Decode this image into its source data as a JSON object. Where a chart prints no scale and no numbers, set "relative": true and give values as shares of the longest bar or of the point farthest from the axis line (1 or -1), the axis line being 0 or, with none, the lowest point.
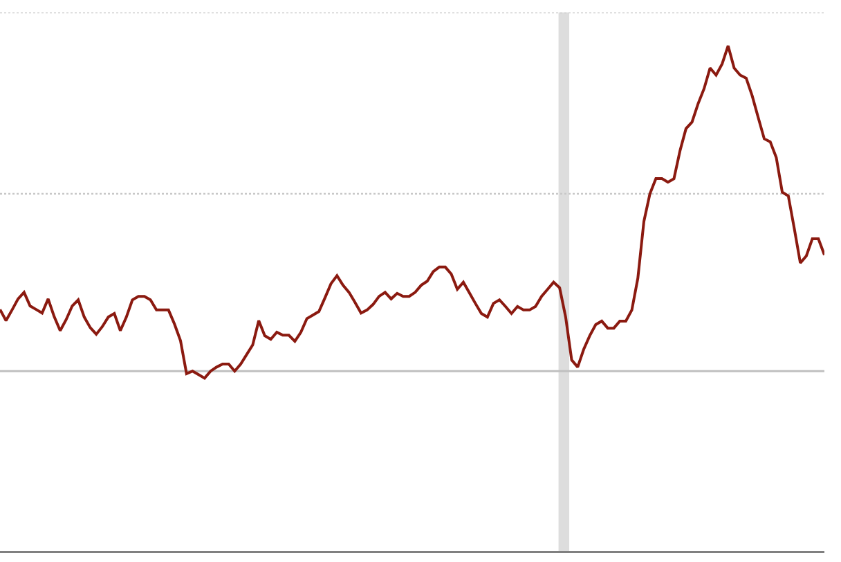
{
  "chart_data": {
    "type": "line",
    "relative": true,
    "categories": [
      null,
      null,
      null,
      null,
      null,
      null,
      null,
      null,
      null,
      null,
      null,
      null,
      null,
      null,
      null,
      null,
      null,
      null,
      null,
      null,
      null,
      null,
      null,
      null,
      null,
      null,
      null,
      null,
      null,
      null,
      null,
      null,
      null,
      null,
      null,
      null,
      null,
      null,
      null,
      null,
      null,
      null,
      null,
      null,
      null,
      null,
      null,
      null,
      null,
      null,
      null,
      null,
      null,
      null,
      null,
      null,
      null,
      null,
      null,
      null,
      null,
      null,
      null,
      null,
      null,
      null,
      null,
      null,
      null,
      null,
      null,
      null,
      null,
      null,
      null,
      null,
      null,
      null,
      null,
      null,
      null,
      null,
      null,
      null,
      null,
      null,
      null,
      null,
      null,
      null,
      null,
      null,
      null,
      null,
      null,
      null,
      null,
      null,
      null,
      null,
      null,
      null,
      null,
      null,
      null,
      null,
      null,
      null,
      null,
      null,
      null,
      null,
      null,
      null,
      null,
      null,
      null,
      null,
      null,
      null,
      null,
      null,
      null,
      null,
      null,
      null,
      null,
      null,
      null,
      null,
      null,
      null,
      null,
      null,
      null,
      null,
      null,
      null
    ],
    "series": [
      {
        "color": "#8b1a10",
        "values": [
          0.478,
          0.456,
          0.477,
          0.499,
          0.512,
          0.485,
          0.478,
          0.471,
          0.499,
          0.464,
          0.436,
          0.458,
          0.485,
          0.497,
          0.463,
          0.442,
          0.429,
          0.444,
          0.463,
          0.47,
          0.436,
          0.463,
          0.497,
          0.504,
          0.504,
          0.497,
          0.477,
          0.477,
          0.477,
          0.449,
          0.416,
          0.351,
          0.356,
          0.349,
          0.342,
          0.356,
          0.364,
          0.37,
          0.37,
          0.356,
          0.37,
          0.389,
          0.408,
          0.456,
          0.426,
          0.419,
          0.433,
          0.427,
          0.427,
          0.415,
          0.433,
          0.46,
          0.467,
          0.474,
          0.501,
          0.529,
          0.545,
          0.526,
          0.512,
          0.492,
          0.471,
          0.477,
          0.488,
          0.504,
          0.512,
          0.499,
          0.51,
          0.504,
          0.504,
          0.512,
          0.526,
          0.534,
          0.553,
          0.562,
          0.562,
          0.548,
          0.518,
          0.532,
          0.511,
          0.49,
          0.47,
          0.463,
          0.49,
          0.497,
          0.484,
          0.47,
          0.484,
          0.477,
          0.477,
          0.484,
          0.504,
          0.518,
          0.532,
          0.521,
          0.463,
          0.378,
          0.364,
          0.399,
          0.426,
          0.448,
          0.455,
          0.441,
          0.441,
          0.455,
          0.455,
          0.477,
          0.54,
          0.652,
          0.707,
          0.737,
          0.737,
          0.73,
          0.737,
          0.792,
          0.836,
          0.849,
          0.885,
          0.915,
          0.956,
          0.942,
          0.964,
          1,
          0.956,
          0.942,
          0.936,
          0.901,
          0.858,
          0.816,
          0.81,
          0.779,
          0.71,
          0.703,
          0.638,
          0.57,
          0.584,
          0.618,
          0.618,
          0.586
        ]
      }
    ],
    "ref_lines": [
      {
        "axis": "y",
        "value": 0.356,
        "color": "#c0c0c0",
        "line_style": "solid"
      },
      {
        "axis": "y",
        "value": 0.707,
        "color": "#c8c8c8",
        "line_style": "dotted"
      },
      {
        "axis": "y",
        "value": 1.066,
        "color": "#c8c8c8",
        "line_style": "dotted"
      }
    ],
    "marker": "none",
    "line_style": "solid",
    "grid": false,
    "tick_labels": false
  }
}
